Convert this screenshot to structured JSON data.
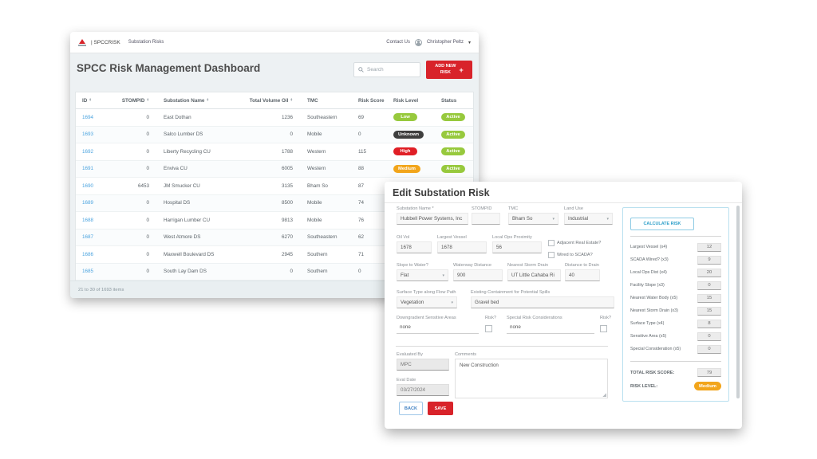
{
  "colors": {
    "accent_red": "#d8232a",
    "link_blue": "#4aa3df",
    "panel_border_blue": "#b9e0ef",
    "calculate_blue": "#2d9fc9",
    "level_colors": {
      "Low": "#97c93d",
      "Medium": "#f2a51b",
      "High": "#e01f26",
      "Unknown": "#3f3f3f"
    },
    "status_colors": {
      "Active": "#97c93d"
    }
  },
  "navbar": {
    "brand": "| SPCCRISK",
    "section": "Substation Risks",
    "contact": "Contact Us",
    "user": "Christopher Peltz"
  },
  "dashboard": {
    "title": "SPCC Risk Management Dashboard",
    "search_placeholder": "Search",
    "add_risk_line1": "ADD NEW",
    "add_risk_line2": "RISK",
    "pagination": "21 to 30 of 1693 items",
    "table": {
      "columns": [
        {
          "label": "ID",
          "sortable": true,
          "align": "left"
        },
        {
          "label": "STOMPID",
          "sortable": true,
          "align": "right"
        },
        {
          "label": "Substation Name",
          "sortable": true,
          "align": "left"
        },
        {
          "label": "Total Volume Oil",
          "sortable": true,
          "align": "right"
        },
        {
          "label": "TMC",
          "sortable": false,
          "align": "left"
        },
        {
          "label": "Risk Score",
          "sortable": false,
          "align": "left"
        },
        {
          "label": "Risk Level",
          "sortable": false,
          "align": "left"
        },
        {
          "label": "Status",
          "sortable": false,
          "align": "left"
        }
      ],
      "rows": [
        {
          "id": "1694",
          "stompid": "0",
          "name": "East Dothan",
          "volume": "1236",
          "tmc": "Southeastern",
          "score": "69",
          "level": "Low",
          "status": "Active"
        },
        {
          "id": "1693",
          "stompid": "0",
          "name": "Salco Lumber DS",
          "volume": "0",
          "tmc": "Mobile",
          "score": "0",
          "level": "Unknown",
          "status": "Active"
        },
        {
          "id": "1692",
          "stompid": "0",
          "name": "Liberty Recycling CU",
          "volume": "1788",
          "tmc": "Western",
          "score": "115",
          "level": "High",
          "status": "Active"
        },
        {
          "id": "1691",
          "stompid": "0",
          "name": "Enviva CU",
          "volume": "6005",
          "tmc": "Western",
          "score": "88",
          "level": "Medium",
          "status": "Active"
        },
        {
          "id": "1690",
          "stompid": "6453",
          "name": "JM Smucker CU",
          "volume": "3135",
          "tmc": "Bham So",
          "score": "87",
          "level": "Medium",
          "status": "Active"
        },
        {
          "id": "1689",
          "stompid": "0",
          "name": "Hospital DS",
          "volume": "8500",
          "tmc": "Mobile",
          "score": "74",
          "level": "Low",
          "status": "Active"
        },
        {
          "id": "1688",
          "stompid": "0",
          "name": "Harrigan Lumber CU",
          "volume": "9813",
          "tmc": "Mobile",
          "score": "76",
          "level": "Medium",
          "status": "Active"
        },
        {
          "id": "1687",
          "stompid": "0",
          "name": "West Atmore DS",
          "volume": "6270",
          "tmc": "Southeastern",
          "score": "62",
          "level": "Low",
          "status": "Active"
        },
        {
          "id": "1686",
          "stompid": "0",
          "name": "Maxwell Boulevard DS",
          "volume": "2945",
          "tmc": "Southern",
          "score": "71",
          "level": "Low",
          "status": "Active"
        },
        {
          "id": "1685",
          "stompid": "0",
          "name": "South Lay Dam DS",
          "volume": "0",
          "tmc": "Southern",
          "score": "0",
          "level": "Unknown",
          "status": "Active"
        }
      ]
    }
  },
  "dialog": {
    "title": "Edit Substation Risk",
    "fields": {
      "substation_name": {
        "label": "Substation Name *",
        "value": "Hubbell Power Systems, Inc"
      },
      "stompid": {
        "label": "STOMPID",
        "value": ""
      },
      "tmc": {
        "label": "TMC",
        "value": "Bham So"
      },
      "land_use": {
        "label": "Land Use",
        "value": "Industrial"
      },
      "oil_vol": {
        "label": "Oil Vol",
        "value": "1678"
      },
      "largest_vessel": {
        "label": "Largest Vessel",
        "value": "1678"
      },
      "local_ops_proximity": {
        "label": "Local Ops Proximity",
        "value": "56"
      },
      "adjacent_real_estate": {
        "label": "Adjacent Real Estate?"
      },
      "wired_to_scada": {
        "label": "Wired to SCADA?"
      },
      "slope_to_water": {
        "label": "Slope to Water?",
        "value": "Flat"
      },
      "waterway_distance": {
        "label": "Waterway Distance",
        "value": "900"
      },
      "nearest_storm_drain": {
        "label": "Nearest Storm Drain",
        "value": "UT Little Cahaba Ri"
      },
      "distance_to_drain": {
        "label": "Distance to Drain",
        "value": "40"
      },
      "surface_type": {
        "label": "Surface Type along Flow Path",
        "value": "Vegetation"
      },
      "containment": {
        "label": "Existing Containment for Potential Spills",
        "value": "Gravel bed"
      },
      "sensitive_areas": {
        "label": "Downgradient Sensitive Areas",
        "value": "none",
        "risk_label": "Risk?"
      },
      "special_risks": {
        "label": "Special Risk Considerations",
        "value": "none",
        "risk_label": "Risk?"
      },
      "evaluated_by": {
        "label": "Evaluated By",
        "value": "MPC"
      },
      "eval_date": {
        "label": "Eval Date",
        "value": "03/27/2024"
      },
      "comments": {
        "label": "Comments",
        "value": "New Construction"
      }
    },
    "risk_panel": {
      "calculate_label": "CALCULATE RISK",
      "factors": [
        {
          "label": "Largest Vessel (x4)",
          "value": "12"
        },
        {
          "label": "SCADA Wired? (x3)",
          "value": "9"
        },
        {
          "label": "Local Ops Dist (x4)",
          "value": "20"
        },
        {
          "label": "Facility Slope (x3)",
          "value": "0"
        },
        {
          "label": "Nearest Water Body (x5)",
          "value": "15"
        },
        {
          "label": "Nearest Storm Drain (x3)",
          "value": "15"
        },
        {
          "label": "Surface Type (x4)",
          "value": "8"
        },
        {
          "label": "Sensitive Area (x5)",
          "value": "0"
        },
        {
          "label": "Special Consideration (x5)",
          "value": "0"
        }
      ],
      "total_label": "TOTAL RISK SCORE:",
      "total_value": "79",
      "level_label": "RISK LEVEL:",
      "level_value": "Medium"
    },
    "back_label": "BACK",
    "save_label": "SAVE"
  }
}
